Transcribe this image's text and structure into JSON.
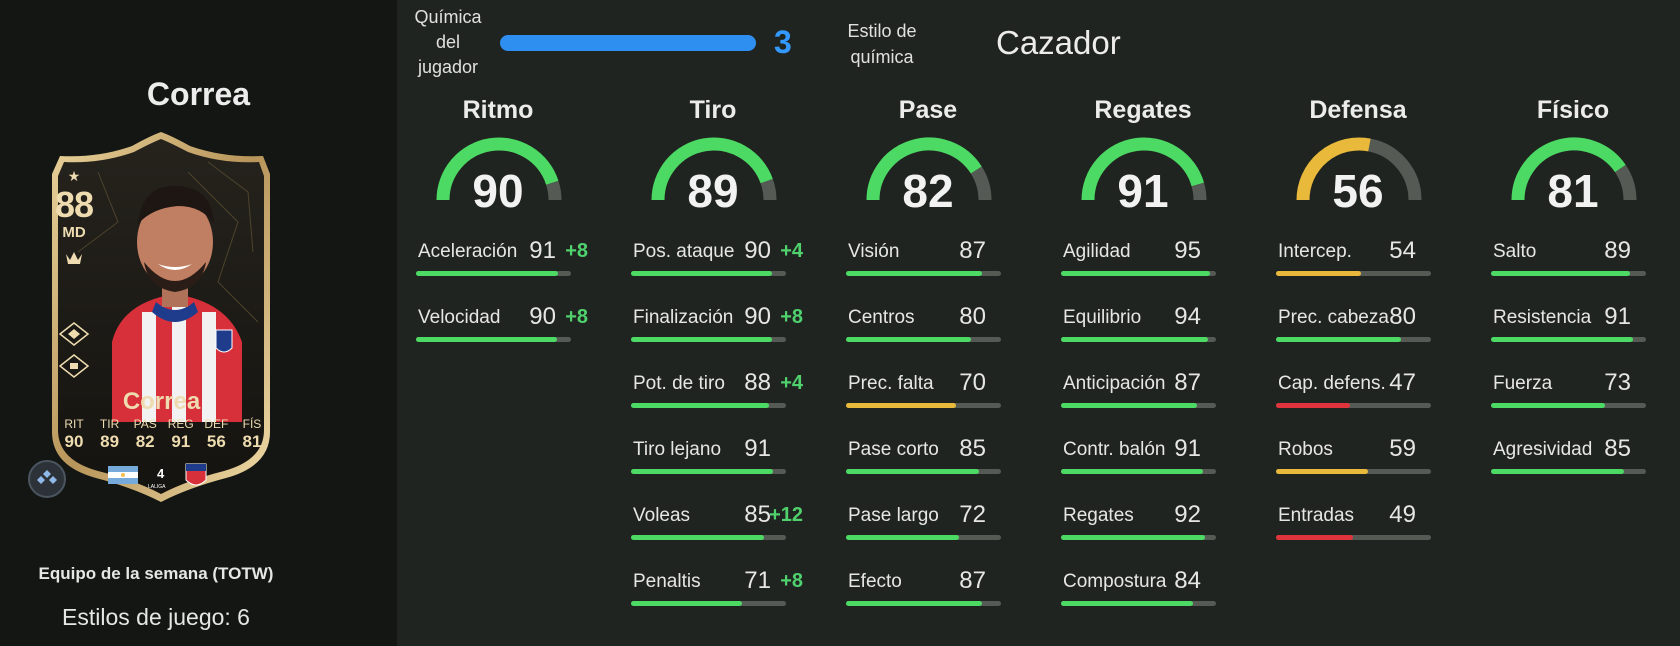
{
  "player": {
    "name": "Correa",
    "card_name": "Correa",
    "rating": "88",
    "position": "MD",
    "program": "Equipo de la semana (TOTW)",
    "playstyles": "Estilos de juego: 6",
    "card_stats": [
      {
        "label": "RIT",
        "value": "90"
      },
      {
        "label": "TIR",
        "value": "89"
      },
      {
        "label": "PAS",
        "value": "82"
      },
      {
        "label": "REG",
        "value": "91"
      },
      {
        "label": "DEF",
        "value": "56"
      },
      {
        "label": "FÍS",
        "value": "81"
      }
    ],
    "league_logo_text": "LALIGA"
  },
  "chemistry": {
    "label": "Química del jugador",
    "label_lines": [
      "Química",
      "del",
      "jugador"
    ],
    "value": "3",
    "style_label_lines": [
      "Estilo de",
      "química"
    ],
    "style_value": "Cazador"
  },
  "colors": {
    "high": "#4cd964",
    "mid": "#e8b93b",
    "low": "#e0343c",
    "chem_blue": "#2f8ff0",
    "track": "#555a55"
  },
  "categories": [
    {
      "title": "Ritmo",
      "value": 90,
      "level": "high",
      "stats": [
        {
          "name": "Aceleración",
          "value": 91,
          "boost": "+8",
          "level": "high"
        },
        {
          "name": "Velocidad",
          "value": 90,
          "boost": "+8",
          "level": "high"
        }
      ]
    },
    {
      "title": "Tiro",
      "value": 89,
      "level": "high",
      "stats": [
        {
          "name": "Pos. ataque",
          "value": 90,
          "boost": "+4",
          "level": "high"
        },
        {
          "name": "Finalización",
          "value": 90,
          "boost": "+8",
          "level": "high"
        },
        {
          "name": "Pot. de tiro",
          "value": 88,
          "boost": "+4",
          "level": "high"
        },
        {
          "name": "Tiro lejano",
          "value": 91,
          "boost": "",
          "level": "high"
        },
        {
          "name": "Voleas",
          "value": 85,
          "boost": "+12",
          "level": "high"
        },
        {
          "name": "Penaltis",
          "value": 71,
          "boost": "+8",
          "level": "high"
        }
      ]
    },
    {
      "title": "Pase",
      "value": 82,
      "level": "high",
      "stats": [
        {
          "name": "Visión",
          "value": 87,
          "boost": "",
          "level": "high"
        },
        {
          "name": "Centros",
          "value": 80,
          "boost": "",
          "level": "high"
        },
        {
          "name": "Prec. falta",
          "value": 70,
          "boost": "",
          "level": "mid"
        },
        {
          "name": "Pase corto",
          "value": 85,
          "boost": "",
          "level": "high"
        },
        {
          "name": "Pase largo",
          "value": 72,
          "boost": "",
          "level": "high"
        },
        {
          "name": "Efecto",
          "value": 87,
          "boost": "",
          "level": "high"
        }
      ]
    },
    {
      "title": "Regates",
      "value": 91,
      "level": "high",
      "stats": [
        {
          "name": "Agilidad",
          "value": 95,
          "boost": "",
          "level": "high"
        },
        {
          "name": "Equilibrio",
          "value": 94,
          "boost": "",
          "level": "high"
        },
        {
          "name": "Anticipación",
          "value": 87,
          "boost": "",
          "level": "high"
        },
        {
          "name": "Contr. balón",
          "value": 91,
          "boost": "",
          "level": "high"
        },
        {
          "name": "Regates",
          "value": 92,
          "boost": "",
          "level": "high"
        },
        {
          "name": "Compostura",
          "value": 84,
          "boost": "",
          "level": "high"
        }
      ]
    },
    {
      "title": "Defensa",
      "value": 56,
      "level": "mid",
      "stats": [
        {
          "name": "Intercep.",
          "value": 54,
          "boost": "",
          "level": "mid"
        },
        {
          "name": "Prec. cabeza",
          "value": 80,
          "boost": "",
          "level": "high"
        },
        {
          "name": "Cap. defens.",
          "value": 47,
          "boost": "",
          "level": "low"
        },
        {
          "name": "Robos",
          "value": 59,
          "boost": "",
          "level": "mid"
        },
        {
          "name": "Entradas",
          "value": 49,
          "boost": "",
          "level": "low"
        }
      ]
    },
    {
      "title": "Físico",
      "value": 81,
      "level": "high",
      "stats": [
        {
          "name": "Salto",
          "value": 89,
          "boost": "",
          "level": "high"
        },
        {
          "name": "Resistencia",
          "value": 91,
          "boost": "",
          "level": "high"
        },
        {
          "name": "Fuerza",
          "value": 73,
          "boost": "",
          "level": "high"
        },
        {
          "name": "Agresividad",
          "value": 85,
          "boost": "",
          "level": "high"
        }
      ]
    }
  ]
}
